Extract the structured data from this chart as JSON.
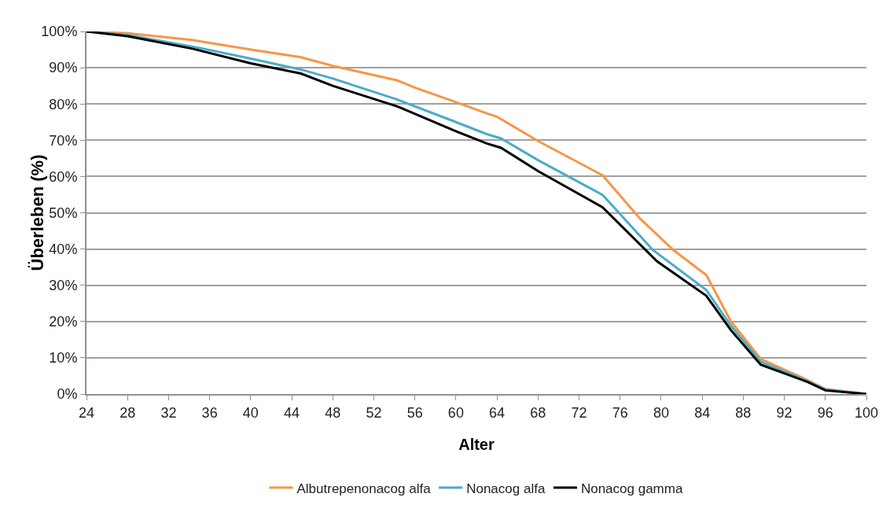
{
  "chart_data": {
    "type": "line",
    "xlabel": "Alter",
    "ylabel": "Überleben (%)",
    "xlim": [
      24,
      100
    ],
    "xticks": [
      24,
      28,
      32,
      36,
      40,
      44,
      48,
      52,
      56,
      60,
      64,
      68,
      72,
      76,
      80,
      84,
      88,
      92,
      96,
      100
    ],
    "ylim": [
      0,
      100
    ],
    "yticks": [
      {
        "value": 0,
        "label": "0%"
      },
      {
        "value": 10,
        "label": "10%"
      },
      {
        "value": 20,
        "label": "20%"
      },
      {
        "value": 30,
        "label": "30%"
      },
      {
        "value": 40,
        "label": "40%"
      },
      {
        "value": 50,
        "label": "50%"
      },
      {
        "value": 60,
        "label": "60%"
      },
      {
        "value": 70,
        "label": "70%"
      },
      {
        "value": 80,
        "label": "80%"
      },
      {
        "value": 90,
        "label": "90%"
      },
      {
        "value": 100,
        "label": "100%"
      }
    ],
    "grid": "y",
    "legend": "bottom",
    "marker": "none",
    "line_style": "solid",
    "series": [
      {
        "name": "Albutrepenonacog alfa",
        "color": "#f79646",
        "x": [
          24,
          28,
          34.4,
          40,
          44.9,
          48,
          54.3,
          56,
          60,
          63,
          64,
          68,
          74.3,
          77.9,
          81.2,
          84.4,
          86.8,
          89.7,
          94.3,
          96,
          100
        ],
        "values": [
          100,
          99.5,
          97.6,
          95,
          92.9,
          90.5,
          86.5,
          84.5,
          80.5,
          77.4,
          76.5,
          69.8,
          60.3,
          48.5,
          39.7,
          32.8,
          20,
          9.7,
          3.8,
          1.4,
          0
        ]
      },
      {
        "name": "Nonacog alfa",
        "color": "#4bacc6",
        "x": [
          24,
          28,
          34.4,
          40,
          44.9,
          48,
          54.3,
          60,
          63,
          64.4,
          68,
          74.3,
          79.2,
          84.4,
          86.8,
          89.7,
          94.3,
          96,
          100
        ],
        "values": [
          100,
          99,
          95.8,
          92.5,
          89.5,
          87,
          81.2,
          75,
          71.7,
          70.5,
          64.5,
          54.9,
          39.7,
          28.7,
          18.8,
          8.9,
          3.5,
          1.2,
          0
        ]
      },
      {
        "name": "Nonacog gamma",
        "color": "#000000",
        "x": [
          24,
          28,
          34.4,
          40,
          44.9,
          48,
          54.3,
          60,
          63,
          64.4,
          68,
          74.3,
          79.6,
          84.4,
          86.8,
          89.7,
          94.3,
          96,
          100
        ],
        "values": [
          100,
          98.7,
          95.2,
          91.2,
          88.4,
          85,
          79.3,
          72.5,
          69.1,
          67.9,
          61.5,
          51.5,
          36.6,
          27.1,
          17.6,
          8.1,
          3.3,
          1,
          0
        ]
      }
    ]
  }
}
